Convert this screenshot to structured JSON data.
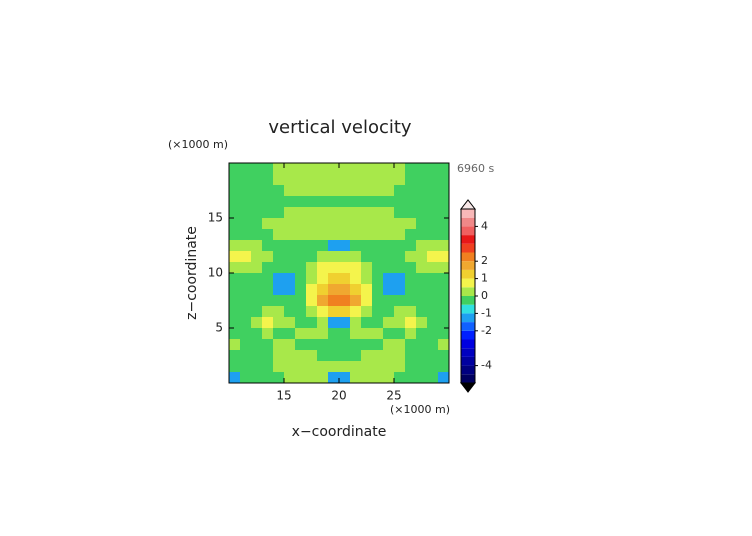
{
  "chart_data": {
    "type": "contour",
    "title": "vertical velocity",
    "time_label": "6960 s",
    "xlabel": "x−coordinate",
    "ylabel": "z−coordinate",
    "x_unit": "(×1000 m)",
    "y_unit": "(×1000 m)",
    "xlim": [
      10,
      30
    ],
    "ylim": [
      0,
      20
    ],
    "xticks": [
      15,
      20,
      25
    ],
    "yticks": [
      5,
      10,
      15
    ],
    "x": [
      10.5,
      11.5,
      12.5,
      13.5,
      14.5,
      15.5,
      16.5,
      17.5,
      18.5,
      19.5,
      20.5,
      21.5,
      22.5,
      23.5,
      24.5,
      25.5,
      26.5,
      27.5,
      28.5,
      29.5
    ],
    "y": [
      19.5,
      18.5,
      17.5,
      16.5,
      15.5,
      14.5,
      13.5,
      12.5,
      11.5,
      10.5,
      9.5,
      8.5,
      7.5,
      6.5,
      5.5,
      4.5,
      3.5,
      2.5,
      1.5,
      0.5
    ],
    "z": [
      [
        -0.2,
        -0.2,
        -0.2,
        -0.2,
        0.3,
        0.3,
        0.3,
        0.3,
        0.3,
        0.3,
        0.3,
        0.3,
        0.3,
        0.3,
        0.3,
        0.3,
        -0.2,
        -0.2,
        -0.2,
        -0.2
      ],
      [
        -0.2,
        -0.2,
        -0.2,
        -0.2,
        0.3,
        0.3,
        0.3,
        0.3,
        0.3,
        0.3,
        0.3,
        0.3,
        0.3,
        0.3,
        0.3,
        0.3,
        -0.2,
        -0.2,
        -0.2,
        -0.2
      ],
      [
        -0.2,
        -0.2,
        -0.2,
        -0.2,
        -0.2,
        0.3,
        0.3,
        0.3,
        0.3,
        0.3,
        0.3,
        0.3,
        0.3,
        0.3,
        0.3,
        -0.2,
        -0.2,
        -0.2,
        -0.2,
        -0.2
      ],
      [
        -0.2,
        -0.2,
        -0.2,
        -0.2,
        -0.2,
        -0.2,
        -0.2,
        -0.2,
        -0.2,
        -0.2,
        -0.2,
        -0.2,
        -0.2,
        -0.2,
        -0.2,
        -0.2,
        -0.2,
        -0.2,
        -0.2,
        -0.2
      ],
      [
        -0.2,
        -0.2,
        -0.2,
        -0.2,
        -0.2,
        0.3,
        0.3,
        0.3,
        0.3,
        0.3,
        0.3,
        0.3,
        0.3,
        0.3,
        0.3,
        -0.2,
        -0.2,
        -0.2,
        -0.2,
        -0.2
      ],
      [
        -0.2,
        -0.2,
        -0.2,
        0.3,
        0.3,
        0.3,
        0.3,
        0.3,
        0.3,
        0.3,
        0.3,
        0.3,
        0.3,
        0.3,
        0.3,
        0.3,
        0.3,
        -0.2,
        -0.2,
        -0.2
      ],
      [
        -0.2,
        -0.2,
        -0.2,
        -0.2,
        0.3,
        0.3,
        0.3,
        0.3,
        0.3,
        0.3,
        0.3,
        0.3,
        0.3,
        0.3,
        0.3,
        0.3,
        -0.2,
        -0.2,
        -0.2,
        -0.2
      ],
      [
        0.3,
        0.3,
        0.3,
        -0.2,
        -0.2,
        -0.2,
        -0.2,
        -0.2,
        -0.2,
        -1.2,
        -1.2,
        -0.2,
        -0.2,
        -0.2,
        -0.2,
        -0.2,
        -0.2,
        0.3,
        0.3,
        0.3
      ],
      [
        0.7,
        0.7,
        0.3,
        0.3,
        -0.2,
        -0.2,
        -0.2,
        -0.2,
        0.3,
        0.3,
        0.3,
        0.3,
        -0.2,
        -0.2,
        -0.2,
        -0.2,
        0.3,
        0.3,
        0.7,
        0.7
      ],
      [
        0.3,
        0.3,
        0.3,
        -0.2,
        -0.2,
        -0.2,
        -0.2,
        0.3,
        0.7,
        0.7,
        0.7,
        0.7,
        0.3,
        -0.2,
        -0.2,
        -0.2,
        -0.2,
        0.3,
        0.3,
        0.3
      ],
      [
        -0.2,
        -0.2,
        -0.2,
        -0.2,
        -1.2,
        -1.2,
        -0.2,
        0.3,
        0.7,
        1.2,
        1.2,
        0.7,
        0.3,
        -0.2,
        -1.2,
        -1.2,
        -0.2,
        -0.2,
        -0.2,
        -0.2
      ],
      [
        -0.2,
        -0.2,
        -0.2,
        -0.2,
        -1.2,
        -1.2,
        -0.2,
        0.7,
        1.2,
        1.7,
        1.7,
        1.2,
        0.7,
        -0.2,
        -1.2,
        -1.2,
        -0.2,
        -0.2,
        -0.2,
        -0.2
      ],
      [
        -0.2,
        -0.2,
        -0.2,
        -0.2,
        -0.2,
        -0.2,
        -0.2,
        0.7,
        1.7,
        2.2,
        2.2,
        1.7,
        0.7,
        -0.2,
        -0.2,
        -0.2,
        -0.2,
        -0.2,
        -0.2,
        -0.2
      ],
      [
        -0.2,
        -0.2,
        -0.2,
        0.3,
        0.3,
        -0.2,
        -0.2,
        0.3,
        0.7,
        1.2,
        1.2,
        0.7,
        0.3,
        -0.2,
        -0.2,
        0.3,
        0.3,
        -0.2,
        -0.2,
        -0.2
      ],
      [
        -0.2,
        -0.2,
        0.3,
        0.7,
        0.3,
        0.3,
        -0.2,
        -0.2,
        0.3,
        -1.2,
        -1.2,
        0.3,
        -0.2,
        -0.2,
        0.3,
        0.3,
        0.7,
        0.3,
        -0.2,
        -0.2
      ],
      [
        -0.2,
        -0.2,
        -0.2,
        0.3,
        -0.2,
        -0.2,
        0.3,
        0.3,
        0.3,
        -0.2,
        -0.2,
        0.3,
        0.3,
        0.3,
        -0.2,
        -0.2,
        0.3,
        -0.2,
        -0.2,
        -0.2
      ],
      [
        0.3,
        -0.2,
        -0.2,
        -0.2,
        0.3,
        0.3,
        -0.2,
        -0.2,
        -0.2,
        -0.2,
        -0.2,
        -0.2,
        -0.2,
        -0.2,
        0.3,
        0.3,
        -0.2,
        -0.2,
        -0.2,
        0.3
      ],
      [
        -0.2,
        -0.2,
        -0.2,
        -0.2,
        0.3,
        0.3,
        0.3,
        0.3,
        -0.2,
        -0.2,
        -0.2,
        -0.2,
        0.3,
        0.3,
        0.3,
        0.3,
        -0.2,
        -0.2,
        -0.2,
        -0.2
      ],
      [
        -0.2,
        -0.2,
        -0.2,
        -0.2,
        0.3,
        0.3,
        0.3,
        0.3,
        0.3,
        0.3,
        0.3,
        0.3,
        0.3,
        0.3,
        0.3,
        0.3,
        -0.2,
        -0.2,
        -0.2,
        -0.2
      ],
      [
        -1.2,
        -0.2,
        -0.2,
        -0.2,
        -0.2,
        0.3,
        0.3,
        0.3,
        0.3,
        -1.2,
        -1.2,
        0.3,
        0.3,
        0.3,
        0.3,
        -0.2,
        -0.2,
        -0.2,
        -0.2,
        -1.2
      ]
    ],
    "colorbar": {
      "levels": [
        -5,
        -4.5,
        -4,
        -3.5,
        -3,
        -2.5,
        -2,
        -1.5,
        -1,
        -0.5,
        0,
        0.5,
        1,
        1.5,
        2,
        2.5,
        3,
        3.5,
        4,
        4.5,
        5
      ],
      "colors": [
        "#000060",
        "#000080",
        "#0000a0",
        "#0000c0",
        "#0000e0",
        "#0020ff",
        "#1060ff",
        "#1ea0f0",
        "#30e0e0",
        "#40d060",
        "#a8e84a",
        "#f4f44c",
        "#f0d030",
        "#f0a830",
        "#f08020",
        "#f04020",
        "#e81818",
        "#f06060",
        "#f08888",
        "#f8b8b8"
      ],
      "ticks": [
        -4,
        -2,
        -1,
        0,
        1,
        2,
        4
      ]
    }
  }
}
